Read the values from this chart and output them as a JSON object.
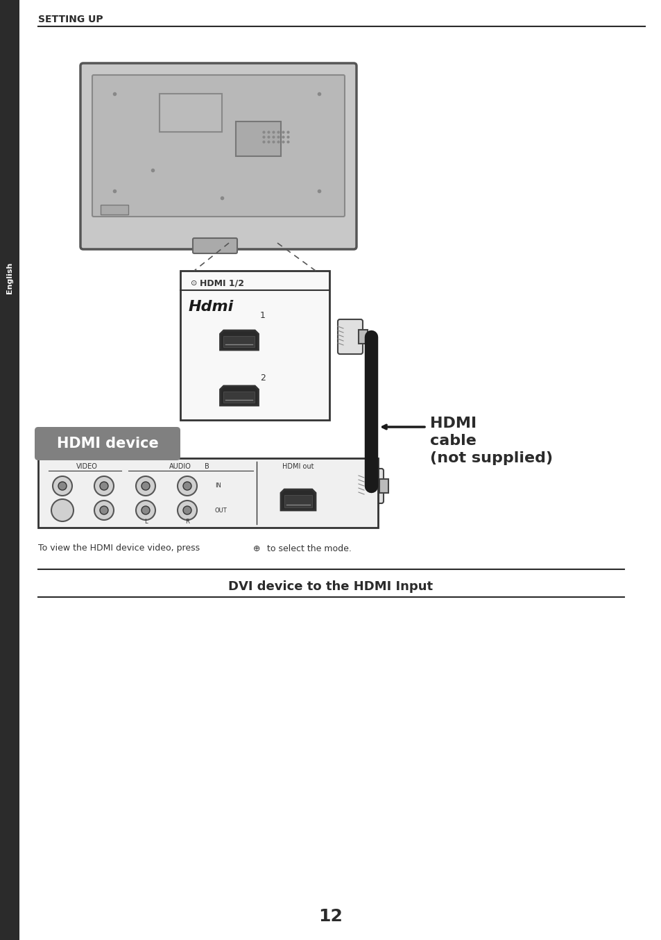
{
  "page_bg": "#ffffff",
  "sidebar_color": "#2b2b2b",
  "sidebar_text": "English",
  "header_text": "SETTING UP",
  "header_color": "#2b2b2b",
  "hdmi_device_label": "HDMI device",
  "hdmi_device_label_bg": "#808080",
  "hdmi_device_label_fg": "#ffffff",
  "hdmi_cable_label": "HDMI\ncable\n(not supplied)",
  "hdmi_cable_color": "#2b2b2b",
  "bottom_text": "To view the HDMI device video, press    to select the mode.",
  "section_title": "DVI device to the HDMI Input",
  "page_number": "12",
  "line_color": "#2b2b2b",
  "cable_color": "#1a1a1a",
  "port_color": "#2b2b2b",
  "tv_border_color": "#555555",
  "tv_bg_color": "#d0d0d0",
  "device_border_color": "#333333",
  "device_bg_color": "#f5f5f5"
}
